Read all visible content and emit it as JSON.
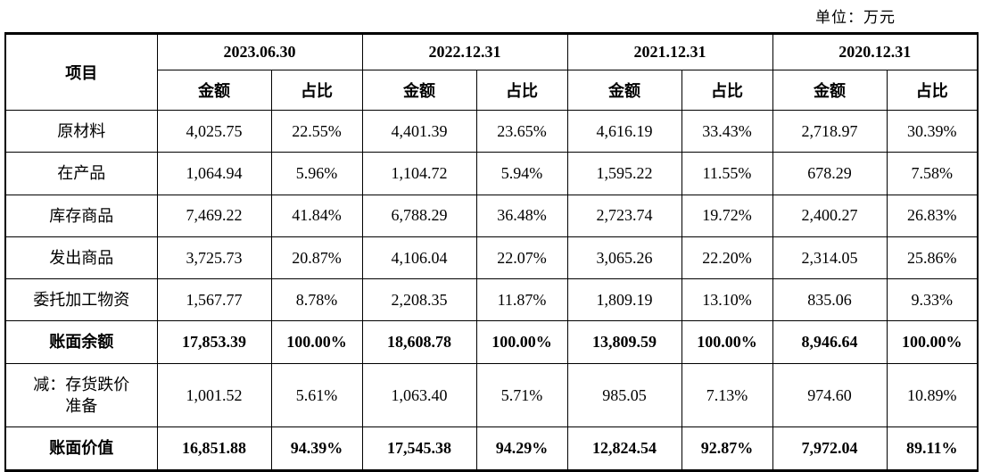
{
  "unit_label": "单位：万元",
  "table": {
    "item_header": "项目",
    "periods": [
      "2023.06.30",
      "2022.12.31",
      "2021.12.31",
      "2020.12.31"
    ],
    "sub_headers": [
      "金额",
      "占比"
    ],
    "rows": [
      {
        "label": "原材料",
        "bold": false,
        "values": [
          "4,025.75",
          "22.55%",
          "4,401.39",
          "23.65%",
          "4,616.19",
          "33.43%",
          "2,718.97",
          "30.39%"
        ]
      },
      {
        "label": "在产品",
        "bold": false,
        "values": [
          "1,064.94",
          "5.96%",
          "1,104.72",
          "5.94%",
          "1,595.22",
          "11.55%",
          "678.29",
          "7.58%"
        ]
      },
      {
        "label": "库存商品",
        "bold": false,
        "values": [
          "7,469.22",
          "41.84%",
          "6,788.29",
          "36.48%",
          "2,723.74",
          "19.72%",
          "2,400.27",
          "26.83%"
        ]
      },
      {
        "label": "发出商品",
        "bold": false,
        "values": [
          "3,725.73",
          "20.87%",
          "4,106.04",
          "22.07%",
          "3,065.26",
          "22.20%",
          "2,314.05",
          "25.86%"
        ]
      },
      {
        "label": "委托加工物资",
        "bold": false,
        "values": [
          "1,567.77",
          "8.78%",
          "2,208.35",
          "11.87%",
          "1,809.19",
          "13.10%",
          "835.06",
          "9.33%"
        ]
      },
      {
        "label": "账面余额",
        "bold": true,
        "values": [
          "17,853.39",
          "100.00%",
          "18,608.78",
          "100.00%",
          "13,809.59",
          "100.00%",
          "8,946.64",
          "100.00%"
        ]
      },
      {
        "label": "减：存货跌价\n准备",
        "bold": false,
        "values": [
          "1,001.52",
          "5.61%",
          "1,063.40",
          "5.71%",
          "985.05",
          "7.13%",
          "974.60",
          "10.89%"
        ]
      },
      {
        "label": "账面价值",
        "bold": true,
        "values": [
          "16,851.88",
          "94.39%",
          "17,545.38",
          "94.29%",
          "12,824.54",
          "92.87%",
          "7,972.04",
          "89.11%"
        ]
      }
    ]
  }
}
